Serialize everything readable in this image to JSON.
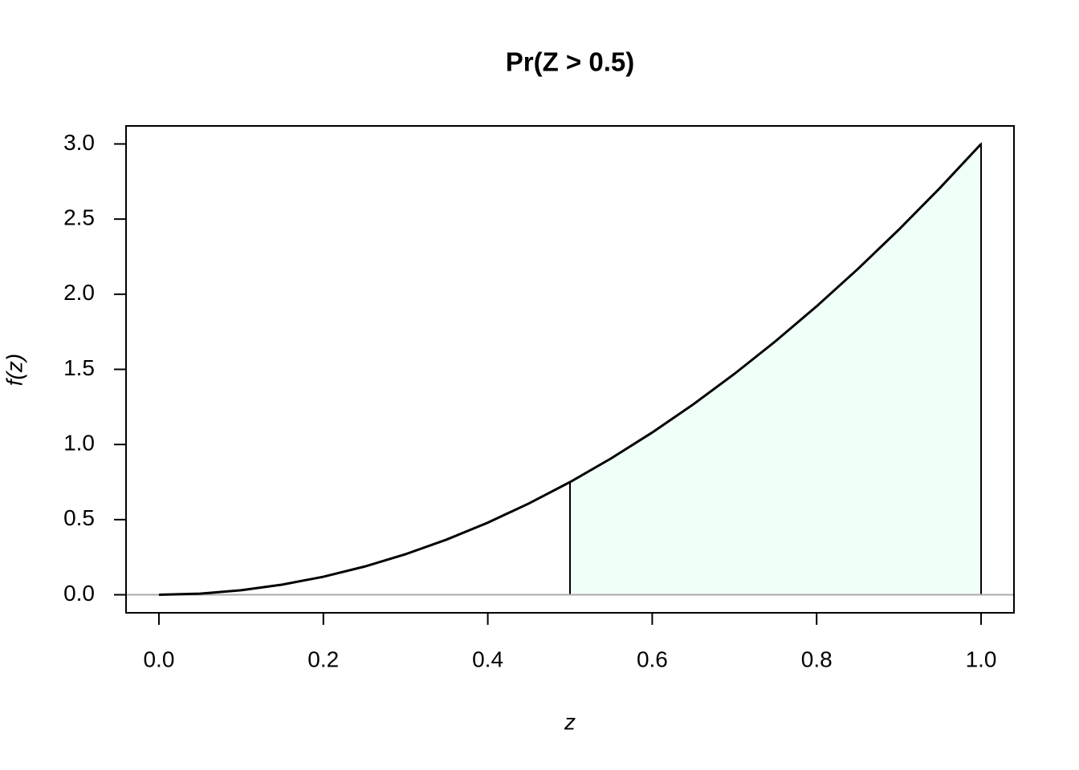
{
  "chart_data": {
    "type": "line",
    "title": "Pr(Z > 0.5)",
    "xlabel": "z",
    "ylabel": "f(z)",
    "x": [
      0,
      0.05,
      0.1,
      0.15,
      0.2,
      0.25,
      0.3,
      0.35,
      0.4,
      0.45,
      0.5,
      0.55,
      0.6,
      0.65,
      0.7,
      0.75,
      0.8,
      0.85,
      0.9,
      0.95,
      1
    ],
    "series": [
      {
        "color": "#000000",
        "values": [
          0,
          0.0075,
          0.03,
          0.0675,
          0.12,
          0.1875,
          0.27,
          0.3675,
          0.48,
          0.6075,
          0.75,
          0.9075,
          1.08,
          1.2675,
          1.47,
          1.6875,
          1.92,
          2.1675,
          2.43,
          2.7075,
          3
        ]
      }
    ],
    "shade": {
      "color": "#f0fff7",
      "x": [
        0.5,
        0.55,
        0.6,
        0.65,
        0.7,
        0.75,
        0.8,
        0.85,
        0.9,
        0.95,
        1
      ],
      "values": [
        0.75,
        0.9075,
        1.08,
        1.2675,
        1.47,
        1.6875,
        1.92,
        2.1675,
        2.43,
        2.7075,
        3
      ]
    },
    "baseline": 0,
    "baseline_color": "#aaaaaa",
    "xlim": [
      -0.04,
      1.04
    ],
    "ylim": [
      -0.12,
      3.12
    ],
    "xticks": [
      {
        "value": 0,
        "label": "0.0"
      },
      {
        "value": 0.2,
        "label": "0.2"
      },
      {
        "value": 0.4,
        "label": "0.4"
      },
      {
        "value": 0.6,
        "label": "0.6"
      },
      {
        "value": 0.8,
        "label": "0.8"
      },
      {
        "value": 1,
        "label": "1.0"
      }
    ],
    "yticks": [
      {
        "value": 0,
        "label": "0.0"
      },
      {
        "value": 0.5,
        "label": "0.5"
      },
      {
        "value": 1,
        "label": "1.0"
      },
      {
        "value": 1.5,
        "label": "1.5"
      },
      {
        "value": 2,
        "label": "2.0"
      },
      {
        "value": 2.5,
        "label": "2.5"
      },
      {
        "value": 3,
        "label": "3.0"
      }
    ],
    "grid": false
  }
}
